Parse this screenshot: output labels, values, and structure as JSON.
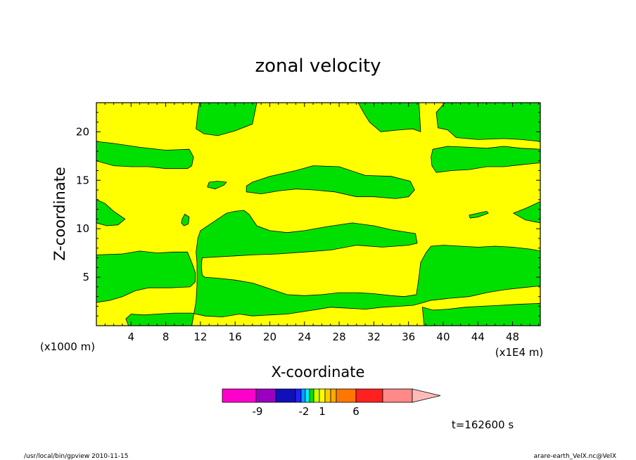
{
  "chart_data": {
    "type": "heatmap",
    "title": "zonal velocity",
    "xlabel": "X-coordinate",
    "ylabel": "Z-coordinate",
    "x_unit": "(x1E4 m)",
    "y_unit": "(x1000 m)",
    "xlim": [
      0,
      51.2
    ],
    "ylim": [
      0,
      23
    ],
    "x_ticks": [
      4,
      8,
      12,
      16,
      20,
      24,
      28,
      32,
      36,
      40,
      44,
      48
    ],
    "y_ticks": [
      5,
      10,
      15,
      20
    ],
    "fill_colors": {
      "positive": "#ffff00",
      "negative": "#00e000"
    },
    "regions": [
      {
        "sign": "negative",
        "points": [
          [
            11.9,
            23
          ],
          [
            18.5,
            23
          ],
          [
            18,
            20.8
          ],
          [
            16,
            20.1
          ],
          [
            14,
            19.6
          ],
          [
            12.4,
            19.8
          ],
          [
            11.5,
            20.3
          ],
          [
            11.7,
            22
          ]
        ]
      },
      {
        "sign": "negative",
        "points": [
          [
            0,
            19
          ],
          [
            2,
            18.8
          ],
          [
            5,
            18.4
          ],
          [
            8,
            18.1
          ],
          [
            10.7,
            18.2
          ],
          [
            11.2,
            17.4
          ],
          [
            11,
            16.5
          ],
          [
            10.5,
            16.2
          ],
          [
            8,
            16.2
          ],
          [
            6,
            16.4
          ],
          [
            4,
            16.4
          ],
          [
            2,
            16.5
          ],
          [
            0,
            17
          ]
        ]
      },
      {
        "sign": "negative",
        "points": [
          [
            30.2,
            23
          ],
          [
            37.2,
            23
          ],
          [
            37.4,
            20
          ],
          [
            36.5,
            20.3
          ],
          [
            35,
            20.2
          ],
          [
            32.8,
            20
          ],
          [
            31.5,
            21
          ],
          [
            30.8,
            22
          ]
        ]
      },
      {
        "sign": "negative",
        "points": [
          [
            40.2,
            23
          ],
          [
            51.2,
            23
          ],
          [
            51.2,
            19
          ],
          [
            49,
            19.2
          ],
          [
            47,
            19.3
          ],
          [
            44,
            19.2
          ],
          [
            41.5,
            19.4
          ],
          [
            40.5,
            20.2
          ],
          [
            39.4,
            20.4
          ],
          [
            39.2,
            22
          ]
        ]
      },
      {
        "sign": "negative",
        "points": [
          [
            38.8,
            18.2
          ],
          [
            40.5,
            18.5
          ],
          [
            43,
            18.4
          ],
          [
            45,
            18.3
          ],
          [
            47,
            18.5
          ],
          [
            49,
            18.3
          ],
          [
            51.2,
            18.2
          ],
          [
            51.2,
            16.8
          ],
          [
            49,
            16.6
          ],
          [
            47,
            16.4
          ],
          [
            45,
            16.4
          ],
          [
            43,
            16.1
          ],
          [
            41,
            16
          ],
          [
            39.2,
            15.8
          ],
          [
            38.7,
            16.5
          ],
          [
            38.6,
            17.4
          ]
        ]
      },
      {
        "sign": "negative",
        "points": [
          [
            17.3,
            13.8
          ],
          [
            19,
            13.6
          ],
          [
            21,
            13.9
          ],
          [
            23,
            14.1
          ],
          [
            25,
            14
          ],
          [
            27.5,
            13.8
          ],
          [
            30,
            13.3
          ],
          [
            32,
            13.3
          ],
          [
            34.5,
            13.1
          ],
          [
            36,
            13.3
          ],
          [
            36.7,
            14
          ],
          [
            36.2,
            14.9
          ],
          [
            34,
            15.4
          ],
          [
            31,
            15.5
          ],
          [
            28,
            16.4
          ],
          [
            25,
            16.5
          ],
          [
            23,
            16
          ],
          [
            20,
            15.4
          ],
          [
            18,
            14.8
          ],
          [
            17.3,
            14.4
          ]
        ]
      },
      {
        "sign": "negative",
        "points": [
          [
            13,
            14.8
          ],
          [
            14,
            14.9
          ],
          [
            15,
            14.8
          ],
          [
            14.7,
            14.5
          ],
          [
            13.7,
            14.1
          ],
          [
            12.8,
            14.3
          ]
        ]
      },
      {
        "sign": "negative",
        "points": [
          [
            0,
            13
          ],
          [
            1,
            12.6
          ],
          [
            2,
            11.8
          ],
          [
            3.3,
            11
          ],
          [
            2.5,
            10.4
          ],
          [
            1.2,
            10.3
          ],
          [
            0,
            10.6
          ]
        ]
      },
      {
        "sign": "negative",
        "points": [
          [
            9.9,
            11
          ],
          [
            10.2,
            11.5
          ],
          [
            10.7,
            11.2
          ],
          [
            10.6,
            10.5
          ],
          [
            10.1,
            10.3
          ],
          [
            9.8,
            10.6
          ]
        ]
      },
      {
        "sign": "negative",
        "points": [
          [
            43,
            11.4
          ],
          [
            44,
            11.6
          ],
          [
            45,
            11.8
          ],
          [
            45.2,
            11.6
          ],
          [
            44,
            11.2
          ],
          [
            43.1,
            11.1
          ]
        ]
      },
      {
        "sign": "negative",
        "points": [
          [
            51.2,
            12.8
          ],
          [
            49.5,
            12.1
          ],
          [
            48.1,
            11.6
          ],
          [
            49.5,
            10.9
          ],
          [
            51.2,
            10.6
          ]
        ]
      },
      {
        "sign": "negative",
        "points": [
          [
            0,
            7.3
          ],
          [
            3,
            7.4
          ],
          [
            5,
            7.7
          ],
          [
            7,
            7.5
          ],
          [
            9,
            7.6
          ],
          [
            10.5,
            7.6
          ],
          [
            11,
            6.5
          ],
          [
            11.4,
            5.5
          ],
          [
            11.4,
            4.5
          ],
          [
            10.8,
            4
          ],
          [
            8.5,
            3.9
          ],
          [
            6,
            3.9
          ],
          [
            4.5,
            3.6
          ],
          [
            3,
            3
          ],
          [
            1.5,
            2.6
          ],
          [
            0,
            2.4
          ]
        ]
      },
      {
        "sign": "negative",
        "points": [
          [
            11.5,
            7.6
          ],
          [
            11.7,
            9
          ],
          [
            12,
            9.8
          ],
          [
            13,
            10.4
          ],
          [
            14,
            11
          ],
          [
            15,
            11.6
          ],
          [
            16,
            11.8
          ],
          [
            17,
            11.9
          ],
          [
            17.6,
            11.5
          ],
          [
            18.5,
            10.3
          ],
          [
            20,
            9.8
          ],
          [
            22,
            9.6
          ],
          [
            24,
            9.8
          ],
          [
            26.5,
            10.2
          ],
          [
            29.5,
            10.6
          ],
          [
            32,
            10.3
          ],
          [
            34,
            9.9
          ],
          [
            36.8,
            9.5
          ],
          [
            37,
            8.5
          ],
          [
            36,
            8.3
          ],
          [
            33,
            8.1
          ],
          [
            30,
            8.3
          ],
          [
            27,
            7.8
          ],
          [
            24,
            7.6
          ],
          [
            21,
            7.4
          ],
          [
            18,
            7.3
          ],
          [
            16,
            7.2
          ],
          [
            12.2,
            7
          ],
          [
            12.1,
            6.2
          ],
          [
            12.2,
            5.2
          ],
          [
            12.5,
            5
          ],
          [
            14,
            4.9
          ],
          [
            16,
            4.7
          ],
          [
            18,
            4.4
          ],
          [
            20,
            3.8
          ],
          [
            22,
            3.2
          ],
          [
            24,
            3.1
          ],
          [
            26,
            3.2
          ],
          [
            28,
            3.4
          ],
          [
            30,
            3.4
          ],
          [
            32,
            3.3
          ],
          [
            34,
            3.1
          ],
          [
            35.5,
            3
          ],
          [
            36.9,
            3.2
          ],
          [
            37.2,
            5
          ],
          [
            37.4,
            6.5
          ],
          [
            38,
            7.5
          ],
          [
            38.6,
            8.2
          ],
          [
            40,
            8.3
          ],
          [
            42,
            8.2
          ],
          [
            44,
            8.1
          ],
          [
            46,
            8.2
          ],
          [
            48,
            8.1
          ],
          [
            50,
            7.9
          ],
          [
            51.2,
            7.7
          ],
          [
            51.2,
            4.1
          ],
          [
            49,
            3.9
          ],
          [
            47,
            3.7
          ],
          [
            45,
            3.4
          ],
          [
            43,
            3
          ],
          [
            40.5,
            2.8
          ],
          [
            38.5,
            2.6
          ],
          [
            37.4,
            2.3
          ],
          [
            36.5,
            2.1
          ],
          [
            35,
            2
          ],
          [
            33,
            1.9
          ],
          [
            31,
            1.7
          ],
          [
            29,
            1.8
          ],
          [
            27,
            1.9
          ],
          [
            25,
            1.6
          ],
          [
            22,
            1.2
          ],
          [
            20,
            1.1
          ],
          [
            18,
            1
          ],
          [
            16.5,
            1.2
          ],
          [
            14.5,
            0.9
          ],
          [
            12.5,
            1
          ],
          [
            11,
            1.3
          ],
          [
            9,
            1.3
          ],
          [
            7,
            1.2
          ],
          [
            5.5,
            1.1
          ],
          [
            4,
            1.2
          ],
          [
            3.4,
            0.7
          ],
          [
            3.7,
            0
          ],
          [
            11,
            0
          ],
          [
            11.5,
            2.5
          ],
          [
            11.6,
            4.2
          ],
          [
            11.6,
            6.5
          ]
        ]
      },
      {
        "sign": "negative",
        "points": [
          [
            37.6,
            1.9
          ],
          [
            38.8,
            1.6
          ],
          [
            40.5,
            1.7
          ],
          [
            42.5,
            1.9
          ],
          [
            44.5,
            2
          ],
          [
            46.5,
            2.1
          ],
          [
            48.5,
            2.2
          ],
          [
            51.2,
            2.3
          ],
          [
            51.2,
            0
          ],
          [
            37.8,
            0
          ]
        ]
      }
    ],
    "colorbar": {
      "colors": [
        "#ff00cc",
        "#9a00c0",
        "#1010b8",
        "#2020ff",
        "#00a0ff",
        "#00f0ff",
        "#00e000",
        "#ccff00",
        "#ffff00",
        "#ffcc00",
        "#ffaa00",
        "#ff7700",
        "#ff2020",
        "#ff8888",
        "#ffbbbb"
      ],
      "tick_labels": [
        "-9",
        "-2",
        "1",
        "6"
      ]
    },
    "time_label": "t=162600 s"
  },
  "footer": {
    "left": "/usr/local/bin/gpview  2010-11-15",
    "right": "arare-earth_VelX.nc@VelX"
  }
}
